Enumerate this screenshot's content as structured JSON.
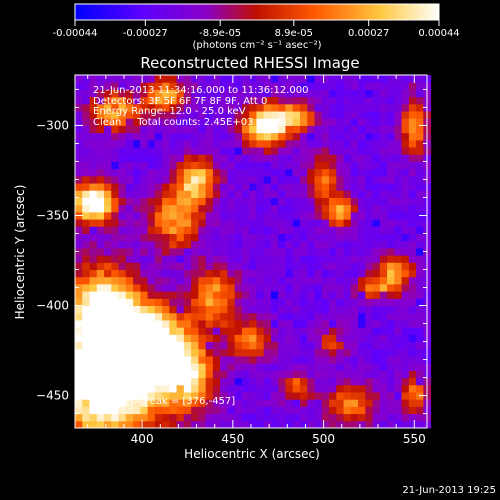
{
  "colorbar": {
    "ticks": [
      "-0.00044",
      "-0.00027",
      "-8.9e-05",
      "8.9e-05",
      "0.00027",
      "0.00044"
    ],
    "tick_values": [
      -0.00044,
      -0.00027,
      -8.9e-05,
      8.9e-05,
      0.00027,
      0.00044
    ],
    "range": [
      -0.00044,
      0.00044
    ],
    "unit": "(photons cm⁻² s⁻¹ asec⁻²)",
    "colors": [
      "#0000ff",
      "#5a00ff",
      "#8a00c8",
      "#c01000",
      "#ff5a00",
      "#ffc840",
      "#ffffff"
    ]
  },
  "annotations": {
    "line1": "21-Jun-2013 11:34:16.000 to 11:36:12.000",
    "line2": "Detectors: 3F 5F 6F 7F 8F 9F, Att 0",
    "line3": "Energy Range: 12.0 - 25.0 keV",
    "line4": "Clean     Total counts: 2.45E+03",
    "peak": "Position of Peak = [376,-457]"
  },
  "footer": {
    "timestamp": "21-Jun-2013 19:25"
  },
  "chart_data": {
    "type": "heatmap",
    "title": "Reconstructed RHESSI Image",
    "xlabel": "Heliocentric X (arcsec)",
    "ylabel": "Heliocentric Y (arcsec)",
    "xlim": [
      363,
      557
    ],
    "ylim": [
      -468,
      -272
    ],
    "xticks": [
      400,
      450,
      500,
      550
    ],
    "yticks": [
      -300,
      -350,
      -400,
      -450
    ],
    "peak": {
      "x": 376,
      "y": -457
    },
    "blobs": [
      {
        "x": 380,
        "y": -445,
        "amp": 1.0,
        "sx": 22,
        "sy": 20
      },
      {
        "x": 400,
        "y": -420,
        "amp": 0.9,
        "sx": 18,
        "sy": 14
      },
      {
        "x": 378,
        "y": -400,
        "amp": 0.75,
        "sx": 14,
        "sy": 16
      },
      {
        "x": 373,
        "y": -343,
        "amp": 0.85,
        "sx": 9,
        "sy": 8
      },
      {
        "x": 385,
        "y": -292,
        "amp": 0.55,
        "sx": 10,
        "sy": 8
      },
      {
        "x": 413,
        "y": -283,
        "amp": 0.55,
        "sx": 8,
        "sy": 7
      },
      {
        "x": 468,
        "y": -300,
        "amp": 0.85,
        "sx": 9,
        "sy": 8
      },
      {
        "x": 485,
        "y": -295,
        "amp": 0.5,
        "sx": 8,
        "sy": 6
      },
      {
        "x": 430,
        "y": -330,
        "amp": 0.6,
        "sx": 8,
        "sy": 9
      },
      {
        "x": 418,
        "y": -352,
        "amp": 0.55,
        "sx": 10,
        "sy": 12
      },
      {
        "x": 440,
        "y": -395,
        "amp": 0.5,
        "sx": 9,
        "sy": 12
      },
      {
        "x": 425,
        "y": -440,
        "amp": 0.6,
        "sx": 10,
        "sy": 12
      },
      {
        "x": 460,
        "y": -420,
        "amp": 0.45,
        "sx": 8,
        "sy": 8
      },
      {
        "x": 500,
        "y": -330,
        "amp": 0.45,
        "sx": 6,
        "sy": 10
      },
      {
        "x": 510,
        "y": -348,
        "amp": 0.55,
        "sx": 6,
        "sy": 6
      },
      {
        "x": 540,
        "y": -380,
        "amp": 0.5,
        "sx": 7,
        "sy": 6
      },
      {
        "x": 530,
        "y": -390,
        "amp": 0.45,
        "sx": 9,
        "sy": 5
      },
      {
        "x": 550,
        "y": -300,
        "amp": 0.5,
        "sx": 5,
        "sy": 12
      },
      {
        "x": 515,
        "y": -455,
        "amp": 0.45,
        "sx": 10,
        "sy": 8
      },
      {
        "x": 550,
        "y": -450,
        "amp": 0.45,
        "sx": 5,
        "sy": 8
      },
      {
        "x": 485,
        "y": -445,
        "amp": 0.4,
        "sx": 6,
        "sy": 6
      },
      {
        "x": 505,
        "y": -420,
        "amp": 0.35,
        "sx": 6,
        "sy": 6
      }
    ]
  }
}
